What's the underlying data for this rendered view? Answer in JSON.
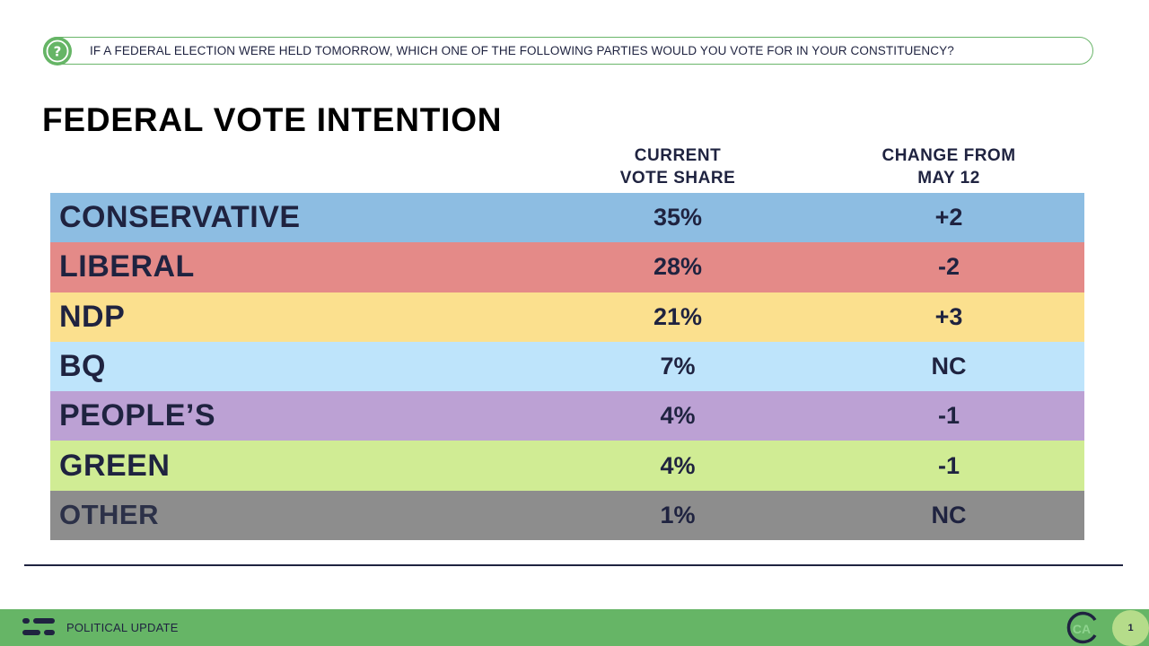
{
  "question": {
    "text": "IF A FEDERAL ELECTION WERE HELD TOMORROW, WHICH ONE OF THE FOLLOWING PARTIES WOULD YOU VOTE FOR IN YOUR CONSTITUENCY?",
    "icon": "question-mark-icon"
  },
  "title": "FEDERAL VOTE INTENTION",
  "footer": {
    "label": "POLITICAL UPDATE",
    "logo_icon": "abacus-lines-icon",
    "brand_icon": "ca-circle-icon",
    "brand_text": "CA",
    "page_number": "1"
  },
  "colors": {
    "accent_green": "#66b566",
    "text_dark": "#1f2340"
  },
  "chart_data": {
    "type": "table",
    "title": "FEDERAL VOTE INTENTION",
    "columns": [
      "CURRENT\nVOTE SHARE",
      "CHANGE FROM\nMAY 12"
    ],
    "rows": [
      {
        "party": "CONSERVATIVE",
        "share": "35%",
        "change": "+2",
        "share_value": 35,
        "change_value": 2,
        "color": "#8dbde2"
      },
      {
        "party": "LIBERAL",
        "share": "28%",
        "change": "-2",
        "share_value": 28,
        "change_value": -2,
        "color": "#e48a88"
      },
      {
        "party": "NDP",
        "share": "21%",
        "change": "+3",
        "share_value": 21,
        "change_value": 3,
        "color": "#fbe08e"
      },
      {
        "party": "BQ",
        "share": "7%",
        "change": "NC",
        "share_value": 7,
        "change_value": 0,
        "color": "#bee4fb"
      },
      {
        "party": "PEOPLE’S",
        "share": "4%",
        "change": "-1",
        "share_value": 4,
        "change_value": -1,
        "color": "#bca1d4"
      },
      {
        "party": "GREEN",
        "share": "4%",
        "change": "-1",
        "share_value": 4,
        "change_value": -1,
        "color": "#d0ec94"
      },
      {
        "party": "OTHER",
        "share": "1%",
        "change": "NC",
        "share_value": 1,
        "change_value": 0,
        "color": "#8d8d8d"
      }
    ]
  }
}
